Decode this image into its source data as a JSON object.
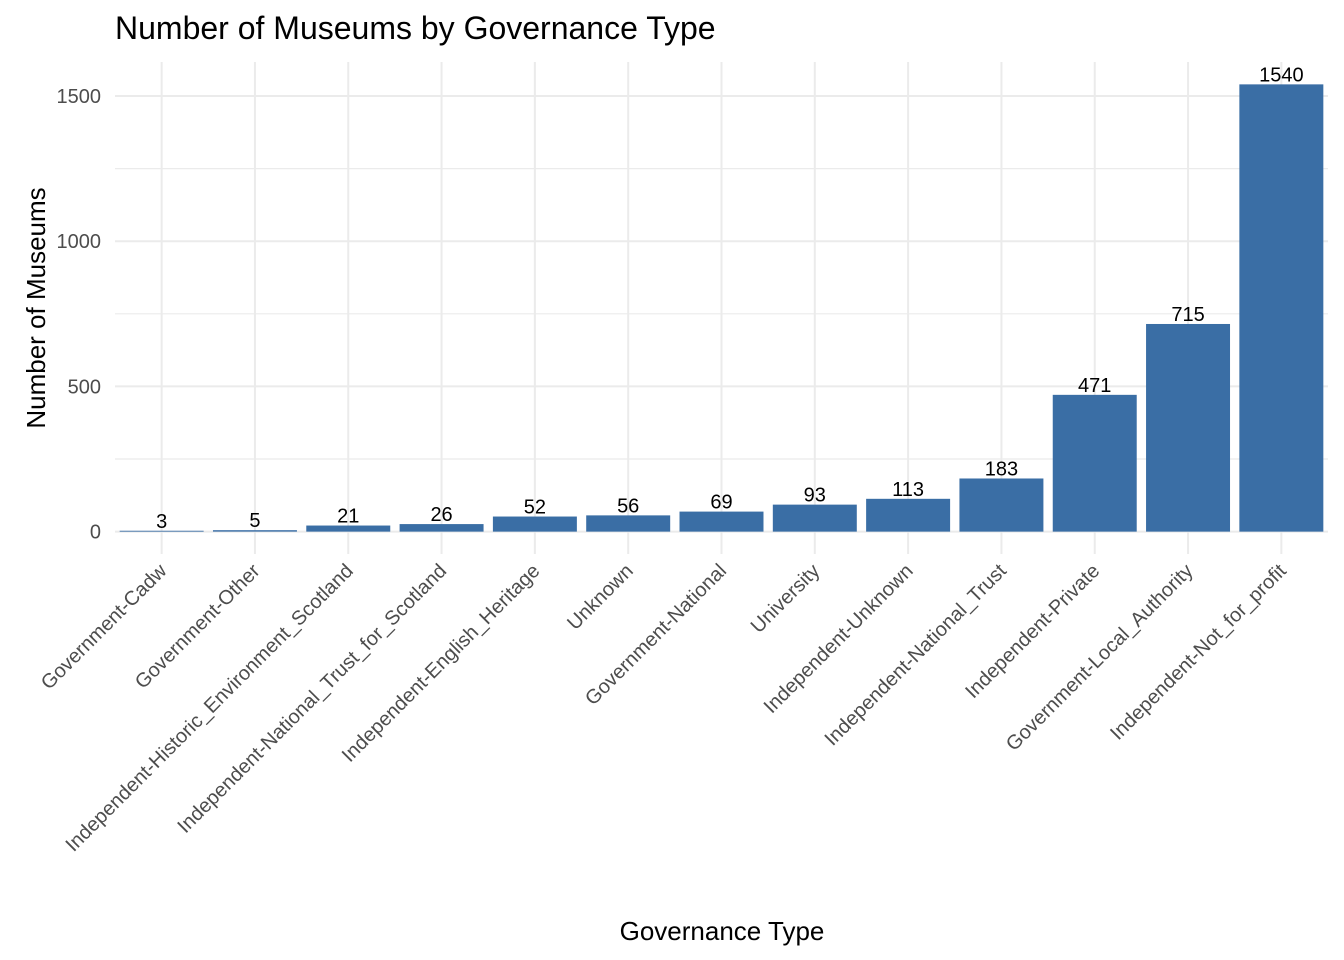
{
  "chart_data": {
    "type": "bar",
    "title": "Number of Museums by Governance Type",
    "xlabel": "Governance Type",
    "ylabel": "Number of Museums",
    "categories": [
      "Government-Cadw",
      "Government-Other",
      "Independent-Historic_Environment_Scotland",
      "Independent-National_Trust_for_Scotland",
      "Independent-English_Heritage",
      "Unknown",
      "Government-National",
      "University",
      "Independent-Unknown",
      "Independent-National_Trust",
      "Independent-Private",
      "Government-Local_Authority",
      "Independent-Not_for_profit"
    ],
    "values": [
      3,
      5,
      21,
      26,
      52,
      56,
      69,
      93,
      113,
      183,
      471,
      715,
      1540
    ],
    "ylim": [
      -77,
      1617
    ],
    "yticks": [
      0,
      500,
      1000,
      1500
    ],
    "grid": true,
    "bar_color": "#3a6ea5"
  }
}
